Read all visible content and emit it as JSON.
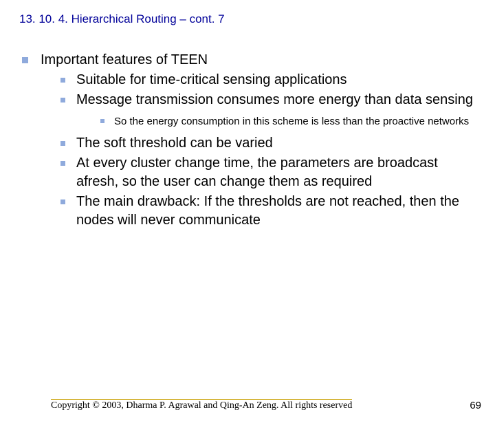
{
  "title": "13. 10. 4. Hierarchical Routing – cont. 7",
  "outline": {
    "lvl1": "Important features of TEEN",
    "lvl2": [
      "Suitable for time-critical sensing applications",
      "Message transmission consumes more energy than data sensing"
    ],
    "lvl3": [
      "So the energy consumption in this scheme is less than the proactive networks"
    ],
    "lvl2b": [
      "The soft threshold can be varied",
      "At every cluster change time, the parameters are broadcast afresh, so the user can change them as required",
      "The main drawback: If the thresholds are not reached, then the nodes will never communicate"
    ]
  },
  "footer": {
    "copyright": "Copyright © 2003, Dharma P. Agrawal and Qing-An Zeng. All rights reserved",
    "page": "69"
  },
  "colors": {
    "title_color": "#000099",
    "bullet_color": "#8faadc",
    "rule_color": "#c8a000",
    "text_color": "#000000",
    "background": "#ffffff"
  }
}
